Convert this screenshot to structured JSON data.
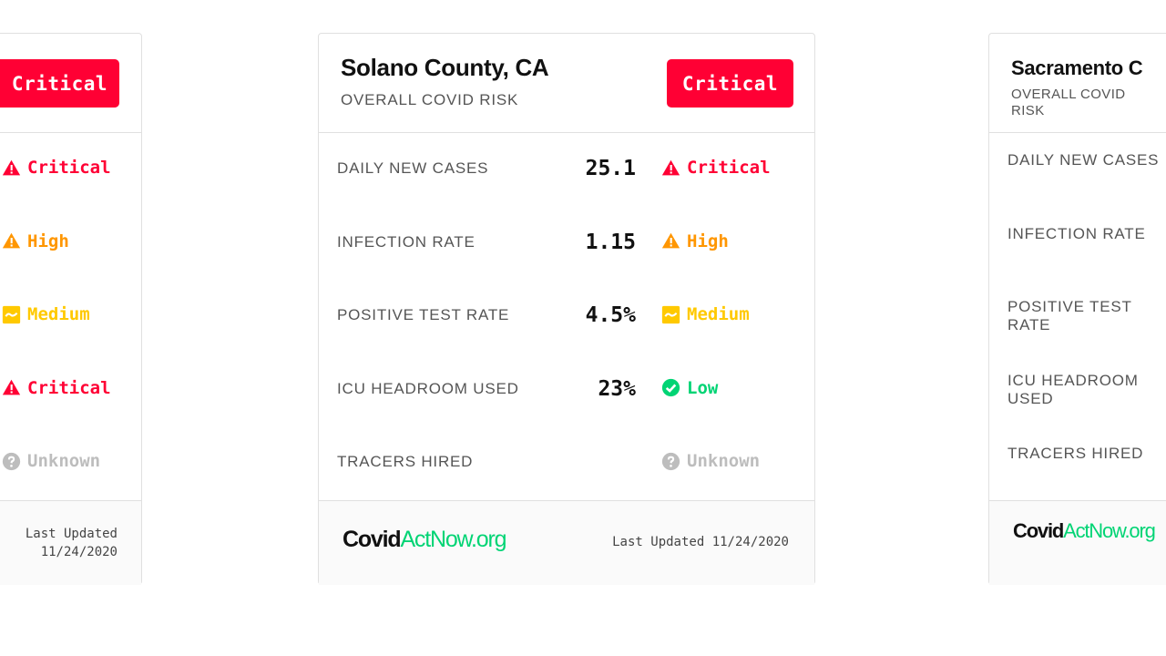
{
  "colors": {
    "critical": "#ff0034",
    "high": "#ff9600",
    "medium": "#ffc900",
    "low": "#00d474",
    "unknown": "#bdbdbd"
  },
  "cards": [
    {
      "title": "",
      "subtitle": "",
      "overall": {
        "label": "Critical",
        "level": "critical"
      },
      "metrics": [
        {
          "label": "",
          "value": "",
          "status": "Critical",
          "level": "critical",
          "icon": "warning-icon"
        },
        {
          "label": "",
          "value": "",
          "status": "High",
          "level": "high",
          "icon": "warning-icon"
        },
        {
          "label": "",
          "value": "",
          "status": "Medium",
          "level": "medium",
          "icon": "trend-icon"
        },
        {
          "label": "",
          "value": "",
          "status": "Critical",
          "level": "critical",
          "icon": "warning-icon"
        },
        {
          "label": "",
          "value": "",
          "status": "Unknown",
          "level": "unknown",
          "icon": "question-icon"
        }
      ],
      "logo": {
        "part1": "",
        "part2": ""
      },
      "updated": "Last Updated 11/24/2020"
    },
    {
      "title": "Solano County, CA",
      "subtitle": "OVERALL COVID RISK",
      "overall": {
        "label": "Critical",
        "level": "critical"
      },
      "metrics": [
        {
          "label": "DAILY NEW CASES",
          "value": "25.1",
          "status": "Critical",
          "level": "critical",
          "icon": "warning-icon"
        },
        {
          "label": "INFECTION RATE",
          "value": "1.15",
          "status": "High",
          "level": "high",
          "icon": "warning-icon"
        },
        {
          "label": "POSITIVE TEST RATE",
          "value": "4.5%",
          "status": "Medium",
          "level": "medium",
          "icon": "trend-icon"
        },
        {
          "label": "ICU HEADROOM USED",
          "value": "23%",
          "status": "Low",
          "level": "low",
          "icon": "check-icon"
        },
        {
          "label": "TRACERS HIRED",
          "value": "",
          "status": "Unknown",
          "level": "unknown",
          "icon": "question-icon"
        }
      ],
      "logo": {
        "part1": "Covid",
        "part2": "ActNow.org"
      },
      "updated": "Last Updated 11/24/2020"
    },
    {
      "title": "Sacramento C",
      "subtitle": "OVERALL COVID RISK",
      "overall": null,
      "metrics": [
        {
          "label": "DAILY NEW CASES"
        },
        {
          "label": "INFECTION RATE"
        },
        {
          "label": "POSITIVE TEST RATE"
        },
        {
          "label": "ICU HEADROOM USED"
        },
        {
          "label": "TRACERS HIRED"
        }
      ],
      "logo": {
        "part1": "Covid",
        "part2": "ActNow.org"
      },
      "updated": ""
    }
  ]
}
